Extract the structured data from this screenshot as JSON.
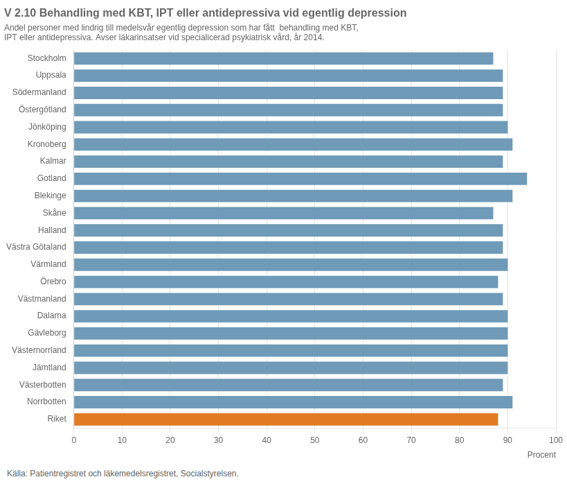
{
  "chart_data": {
    "type": "bar",
    "orientation": "horizontal",
    "title": "V 2.10 Behandling med KBT, IPT eller antidepressiva vid egentlig depression",
    "subtitle": [
      "Andel personer med lindrig till medelsvår egentlig depression som har fått  behandling med KBT,",
      "IPT eller antidepressiva. Avser läkarinsatser vid specialicerad psykiatrisk vård, år 2014."
    ],
    "annotations": [
      "Källa: Patientregistret och läkemedelsregistret, Socialstyrelsen."
    ],
    "xlabel": "Procent",
    "categories": [
      "Stockholm",
      "Uppsala",
      "Södermanland",
      "Östergötland",
      "Jönköping",
      "Kronoberg",
      "Kalmar",
      "Gotland",
      "Blekinge",
      "Skåne",
      "Halland",
      "Västra Götaland",
      "Värmland",
      "Örebro",
      "Västmanland",
      "Dalarna",
      "Gävleborg",
      "Västernorrland",
      "Jämtland",
      "Västerbotten",
      "Norrbotten",
      "Riket"
    ],
    "values": [
      87,
      89,
      89,
      89,
      90,
      91,
      89,
      94,
      91,
      87,
      89,
      89,
      90,
      88,
      89,
      90,
      90,
      90,
      90,
      89,
      91,
      88
    ],
    "colors": [
      "#6f9ab8",
      "#6f9ab8",
      "#6f9ab8",
      "#6f9ab8",
      "#6f9ab8",
      "#6f9ab8",
      "#6f9ab8",
      "#6f9ab8",
      "#6f9ab8",
      "#6f9ab8",
      "#6f9ab8",
      "#6f9ab8",
      "#6f9ab8",
      "#6f9ab8",
      "#6f9ab8",
      "#6f9ab8",
      "#6f9ab8",
      "#6f9ab8",
      "#6f9ab8",
      "#6f9ab8",
      "#6f9ab8",
      "#e07b24"
    ],
    "xlim": [
      0,
      100
    ],
    "xticks": [
      0,
      10,
      20,
      30,
      40,
      50,
      60,
      70,
      80,
      90,
      100
    ],
    "grid": true
  }
}
